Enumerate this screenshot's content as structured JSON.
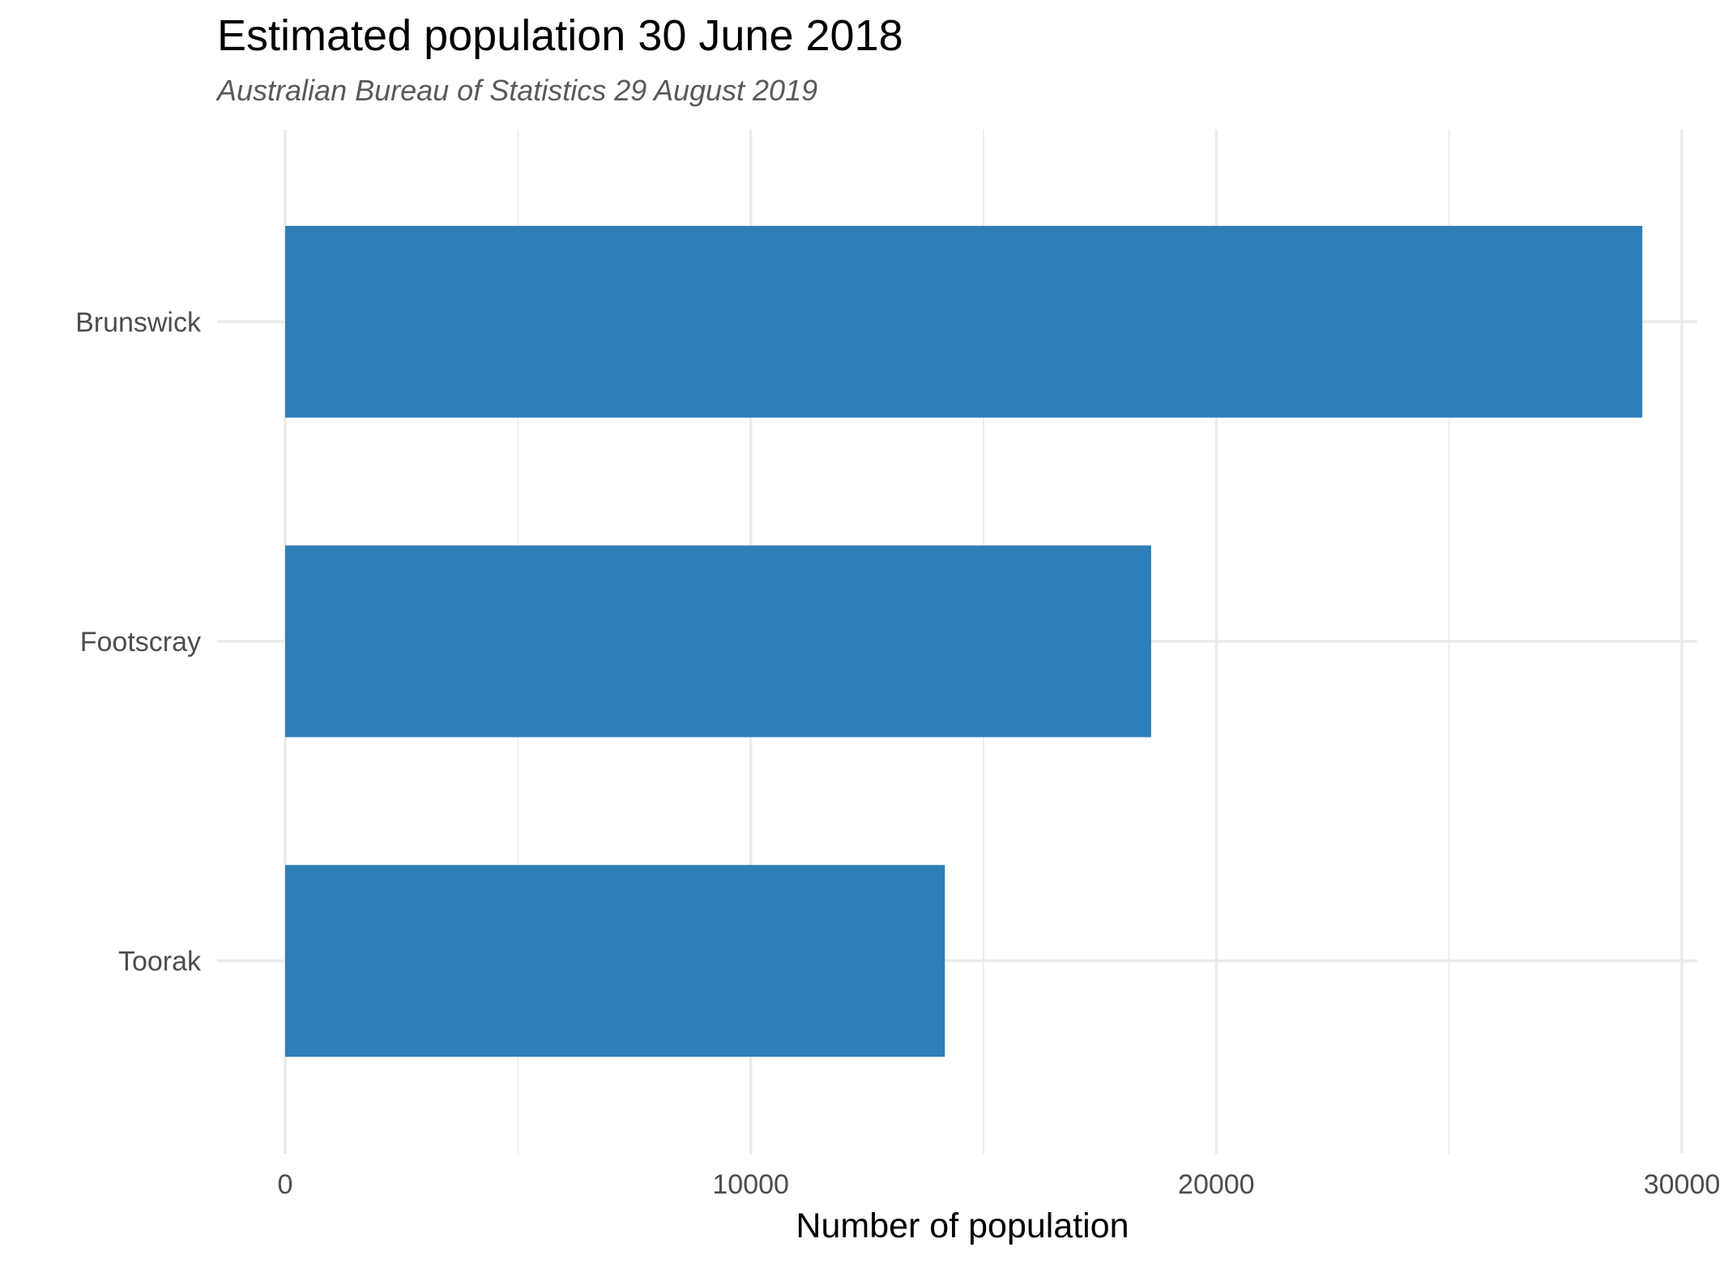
{
  "chart_data": {
    "type": "bar",
    "orientation": "horizontal",
    "title": "Estimated population 30 June 2018",
    "subtitle": "Australian Bureau of Statistics 29 August 2019",
    "xlabel": "Number of population",
    "ylabel": "",
    "categories": [
      "Brunswick",
      "Footscray",
      "Toorak"
    ],
    "values": [
      29150,
      18600,
      14170
    ],
    "xlim": [
      0,
      30000
    ],
    "x_ticks": [
      0,
      10000,
      20000,
      30000
    ],
    "x_tick_labels": [
      "0",
      "10000",
      "20000",
      "30000"
    ],
    "grid": true,
    "legend": "none",
    "bar_color": "#2e7eb7"
  }
}
